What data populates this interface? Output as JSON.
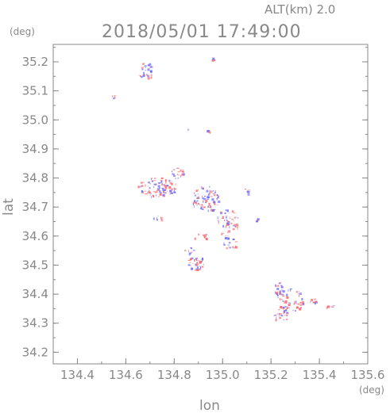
{
  "header": {
    "altitude_label": "ALT(km) 2.0",
    "timestamp": "2018/05/01 17:49:00"
  },
  "chart_data": {
    "type": "scatter",
    "title": "2018/05/01 17:49:00",
    "xlabel": "lon",
    "ylabel": "lat",
    "x_unit": "(deg)",
    "y_unit": "(deg)",
    "xlim": [
      134.3,
      135.6
    ],
    "ylim": [
      34.16,
      35.26
    ],
    "x_ticks": [
      134.4,
      134.6,
      134.8,
      135.0,
      135.2,
      135.4,
      135.6
    ],
    "x_tick_labels": [
      "134.4",
      "134.6",
      "134.8",
      "135.0",
      "135.2",
      "135.4",
      "135.6"
    ],
    "y_ticks": [
      34.2,
      34.3,
      34.4,
      34.5,
      34.6,
      34.7,
      34.8,
      34.9,
      35.0,
      35.1,
      35.2
    ],
    "y_tick_labels": [
      "34.2",
      "34.3",
      "34.4",
      "34.5",
      "34.6",
      "34.7",
      "34.8",
      "34.9",
      "35.0",
      "35.1",
      "35.2"
    ],
    "grid": false,
    "colors": {
      "positive": "#ff6e6e",
      "negative": "#6e6eff",
      "axis": "#888888"
    },
    "clusters": [
      {
        "lon": 134.68,
        "lat": 35.17,
        "rx": 0.035,
        "ry": 0.03,
        "n": 28
      },
      {
        "lon": 134.55,
        "lat": 35.08,
        "rx": 0.012,
        "ry": 0.005,
        "n": 6
      },
      {
        "lon": 134.96,
        "lat": 35.21,
        "rx": 0.01,
        "ry": 0.005,
        "n": 5
      },
      {
        "lon": 134.94,
        "lat": 34.96,
        "rx": 0.015,
        "ry": 0.006,
        "n": 6
      },
      {
        "lon": 134.86,
        "lat": 34.97,
        "rx": 0.005,
        "ry": 0.004,
        "n": 2
      },
      {
        "lon": 134.73,
        "lat": 34.77,
        "rx": 0.085,
        "ry": 0.035,
        "n": 90
      },
      {
        "lon": 134.81,
        "lat": 34.82,
        "rx": 0.025,
        "ry": 0.02,
        "n": 22
      },
      {
        "lon": 134.93,
        "lat": 34.73,
        "rx": 0.06,
        "ry": 0.045,
        "n": 85
      },
      {
        "lon": 135.02,
        "lat": 34.65,
        "rx": 0.045,
        "ry": 0.05,
        "n": 55
      },
      {
        "lon": 135.03,
        "lat": 34.58,
        "rx": 0.03,
        "ry": 0.025,
        "n": 18
      },
      {
        "lon": 134.91,
        "lat": 34.6,
        "rx": 0.03,
        "ry": 0.012,
        "n": 10
      },
      {
        "lon": 134.89,
        "lat": 34.51,
        "rx": 0.035,
        "ry": 0.025,
        "n": 40
      },
      {
        "lon": 134.86,
        "lat": 34.55,
        "rx": 0.02,
        "ry": 0.012,
        "n": 8
      },
      {
        "lon": 135.1,
        "lat": 34.76,
        "rx": 0.015,
        "ry": 0.015,
        "n": 6
      },
      {
        "lon": 135.14,
        "lat": 34.66,
        "rx": 0.01,
        "ry": 0.01,
        "n": 4
      },
      {
        "lon": 134.73,
        "lat": 34.66,
        "rx": 0.02,
        "ry": 0.01,
        "n": 8
      },
      {
        "lon": 135.23,
        "lat": 34.42,
        "rx": 0.02,
        "ry": 0.025,
        "n": 22
      },
      {
        "lon": 135.28,
        "lat": 34.38,
        "rx": 0.055,
        "ry": 0.04,
        "n": 55
      },
      {
        "lon": 135.24,
        "lat": 34.33,
        "rx": 0.035,
        "ry": 0.02,
        "n": 22
      },
      {
        "lon": 135.38,
        "lat": 34.38,
        "rx": 0.02,
        "ry": 0.012,
        "n": 8
      },
      {
        "lon": 135.44,
        "lat": 34.36,
        "rx": 0.015,
        "ry": 0.01,
        "n": 6
      }
    ]
  }
}
